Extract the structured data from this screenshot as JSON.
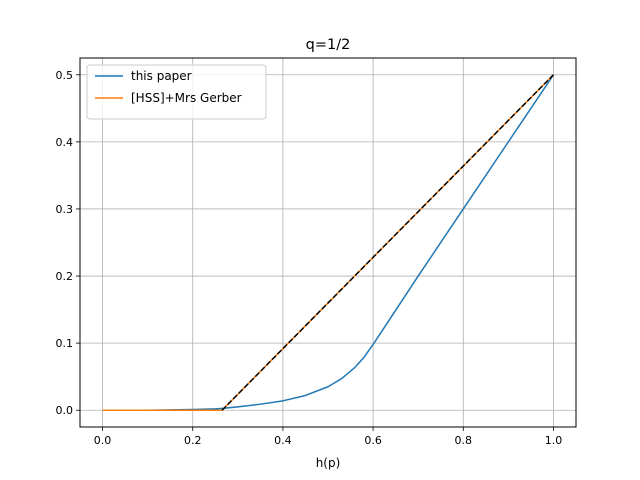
{
  "chart_data": {
    "type": "line",
    "title": "q=1/2",
    "xlabel": "h(p)",
    "ylabel": "",
    "xlim": [
      -0.05,
      1.05
    ],
    "ylim": [
      -0.025,
      0.525
    ],
    "xticks": [
      0.0,
      0.2,
      0.4,
      0.6,
      0.8,
      1.0
    ],
    "xtick_labels": [
      "0.0",
      "0.2",
      "0.4",
      "0.6",
      "0.8",
      "1.0"
    ],
    "yticks": [
      0.0,
      0.1,
      0.2,
      0.3,
      0.4,
      0.5
    ],
    "ytick_labels": [
      "0.0",
      "0.1",
      "0.2",
      "0.3",
      "0.4",
      "0.5"
    ],
    "grid": true,
    "legend_position": "top-left",
    "series": [
      {
        "name": "this paper",
        "color": "#1f77b4",
        "style": "solid",
        "x": [
          0.0,
          0.1,
          0.2,
          0.25,
          0.27,
          0.3,
          0.35,
          0.4,
          0.45,
          0.5,
          0.53,
          0.56,
          0.58,
          0.6,
          0.7,
          0.8,
          0.9,
          1.0
        ],
        "y": [
          0.0,
          0.0,
          0.001,
          0.002,
          0.003,
          0.005,
          0.009,
          0.014,
          0.022,
          0.035,
          0.047,
          0.064,
          0.079,
          0.098,
          0.2,
          0.3,
          0.4,
          0.5
        ]
      },
      {
        "name": "[HSS]+Mrs Gerber",
        "color": "#ff7f0e",
        "style": "solid",
        "x": [
          0.0,
          0.265,
          1.0
        ],
        "y": [
          0.0,
          0.0,
          0.5
        ]
      },
      {
        "name": "",
        "color": "#000000",
        "style": "dashed",
        "x": [
          0.265,
          1.0
        ],
        "y": [
          0.0,
          0.5
        ]
      }
    ]
  }
}
